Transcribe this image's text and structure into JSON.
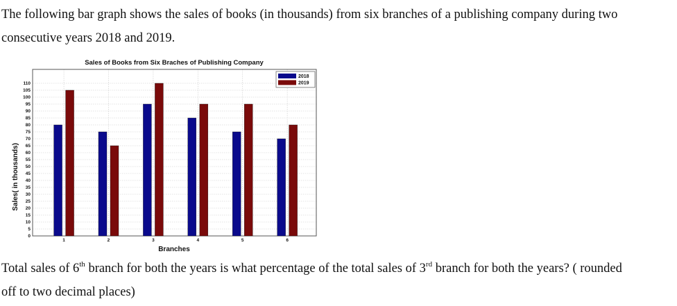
{
  "question": {
    "line1": "The following bar graph shows the sales of books (in thousands) from six branches of a publishing company during two",
    "line2": "consecutive years 2018 and 2019.",
    "line3_a": "Total sales of 6",
    "line3_sup1": "th",
    "line3_b": " branch for both the years is what percentage of the total sales of 3",
    "line3_sup2": "rd",
    "line3_c": " branch for both the years? ( rounded",
    "line4": "off to two decimal places)"
  },
  "chart_data": {
    "type": "bar",
    "title": "Sales of Books from Six Braches of Publishing Company",
    "xlabel": "Branches",
    "ylabel": "Sales( in thousands)",
    "categories": [
      "1",
      "2",
      "3",
      "4",
      "5",
      "6"
    ],
    "yticks": [
      "0",
      "5",
      "10",
      "15",
      "20",
      "25",
      "30",
      "35",
      "40",
      "45",
      "50",
      "55",
      "60",
      "65",
      "70",
      "75",
      "80",
      "85",
      "90",
      "95",
      "100",
      "105",
      "110"
    ],
    "ylim": [
      0,
      120
    ],
    "grid": true,
    "legend_position": "top-right",
    "series": [
      {
        "name": "2018",
        "color": "#0a0a8c",
        "values": [
          80,
          75,
          95,
          85,
          75,
          70
        ]
      },
      {
        "name": "2019",
        "color": "#7a0a0a",
        "values": [
          105,
          65,
          110,
          95,
          95,
          80
        ]
      }
    ]
  }
}
